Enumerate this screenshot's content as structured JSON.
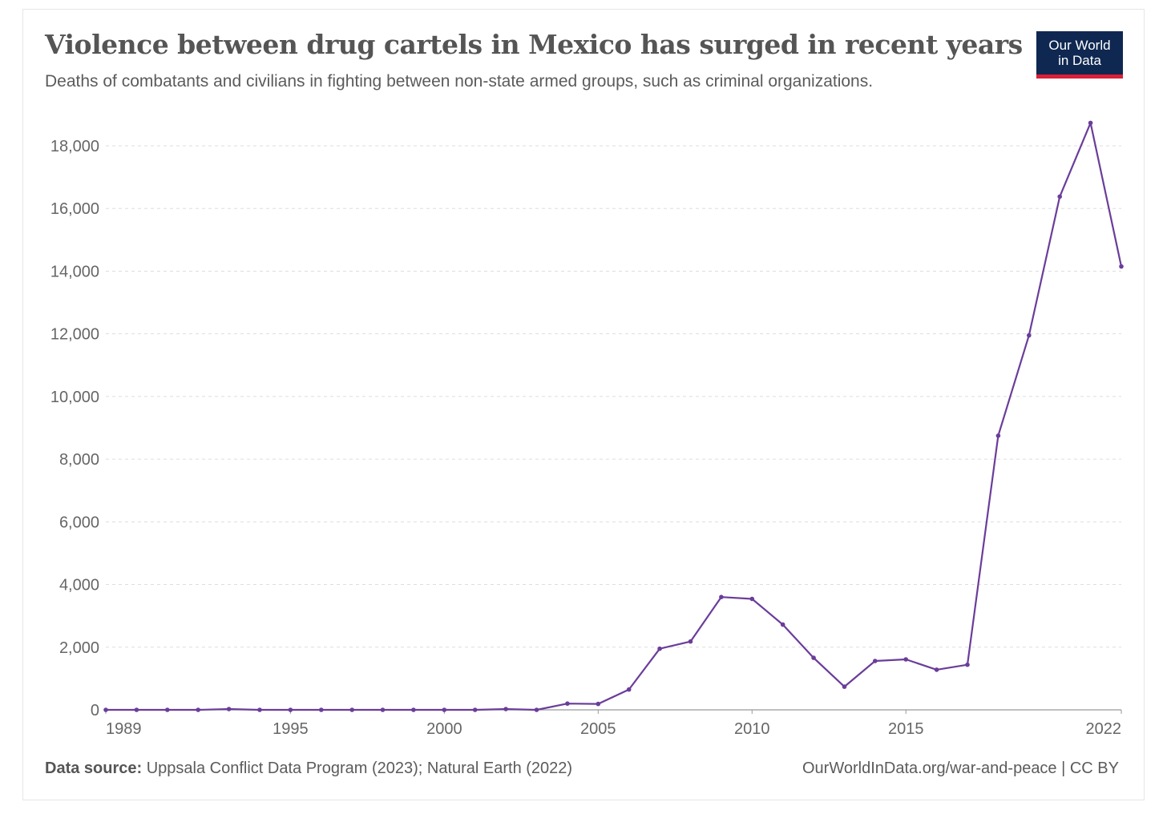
{
  "header": {
    "title": "Violence between drug cartels in Mexico has surged in recent years",
    "subtitle": "Deaths of combatants and civilians in fighting between non-state armed groups, such as criminal organizations.",
    "logo_line1": "Our World",
    "logo_line2": "in Data"
  },
  "footer": {
    "source_label": "Data source:",
    "source_text": "Uppsala Conflict Data Program (2023); Natural Earth (2022)",
    "credit": "OurWorldInData.org/war-and-peace | CC BY"
  },
  "colors": {
    "line": "#6a3d9a",
    "grid": "#dddddd",
    "axis": "#999999",
    "tick_text": "#666666",
    "logo_bg": "#0f2851",
    "logo_bar": "#dc1e38"
  },
  "chart_data": {
    "type": "line",
    "title": "Violence between drug cartels in Mexico has surged in recent years",
    "subtitle": "Deaths of combatants and civilians in fighting between non-state armed groups, such as criminal organizations.",
    "xlabel": "",
    "ylabel": "",
    "xlim": [
      1989,
      2022
    ],
    "ylim": [
      0,
      18000
    ],
    "x_ticks": [
      1989,
      1995,
      2000,
      2005,
      2010,
      2015,
      2022
    ],
    "y_ticks": [
      0,
      2000,
      4000,
      6000,
      8000,
      10000,
      12000,
      14000,
      16000,
      18000
    ],
    "y_tick_labels": [
      "0",
      "2,000",
      "4,000",
      "6,000",
      "8,000",
      "10,000",
      "12,000",
      "14,000",
      "16,000",
      "18,000"
    ],
    "grid": "horizontal dashed",
    "series": [
      {
        "name": "Mexico",
        "x": [
          1989,
          1990,
          1991,
          1992,
          1993,
          1994,
          1995,
          1996,
          1997,
          1998,
          1999,
          2000,
          2001,
          2002,
          2003,
          2004,
          2005,
          2006,
          2007,
          2008,
          2009,
          2010,
          2011,
          2012,
          2013,
          2014,
          2015,
          2016,
          2017,
          2018,
          2019,
          2020,
          2021,
          2022
        ],
        "values": [
          0,
          0,
          0,
          0,
          25,
          0,
          0,
          0,
          0,
          0,
          0,
          0,
          0,
          25,
          0,
          200,
          190,
          650,
          1950,
          2180,
          3600,
          3540,
          2720,
          1660,
          740,
          1560,
          1610,
          1280,
          1440,
          8750,
          11950,
          16380,
          18730,
          14150
        ]
      }
    ]
  }
}
